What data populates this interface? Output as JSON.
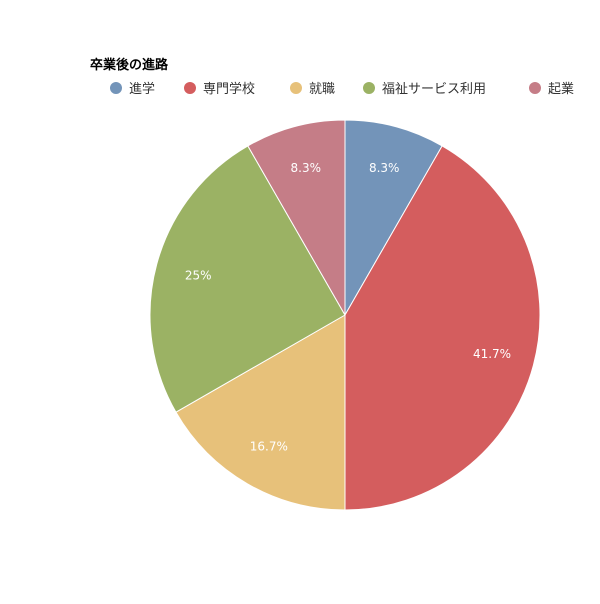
{
  "chart_data": {
    "type": "pie",
    "legend_title": "卒業後の進路",
    "legend_position": "top-left",
    "categories": [
      "進学",
      "専門学校",
      "就職",
      "福祉サービス利用",
      "起業"
    ],
    "values": [
      8.3,
      41.7,
      16.7,
      25,
      8.3
    ],
    "labels": [
      "8.3%",
      "41.7%",
      "16.7%",
      "25%",
      "8.3%"
    ],
    "colors": [
      "#7394b9",
      "#d45d5e",
      "#e7c17a",
      "#9bb264",
      "#c57d87"
    ],
    "start_angle": "12 o'clock",
    "direction": "clockwise"
  }
}
